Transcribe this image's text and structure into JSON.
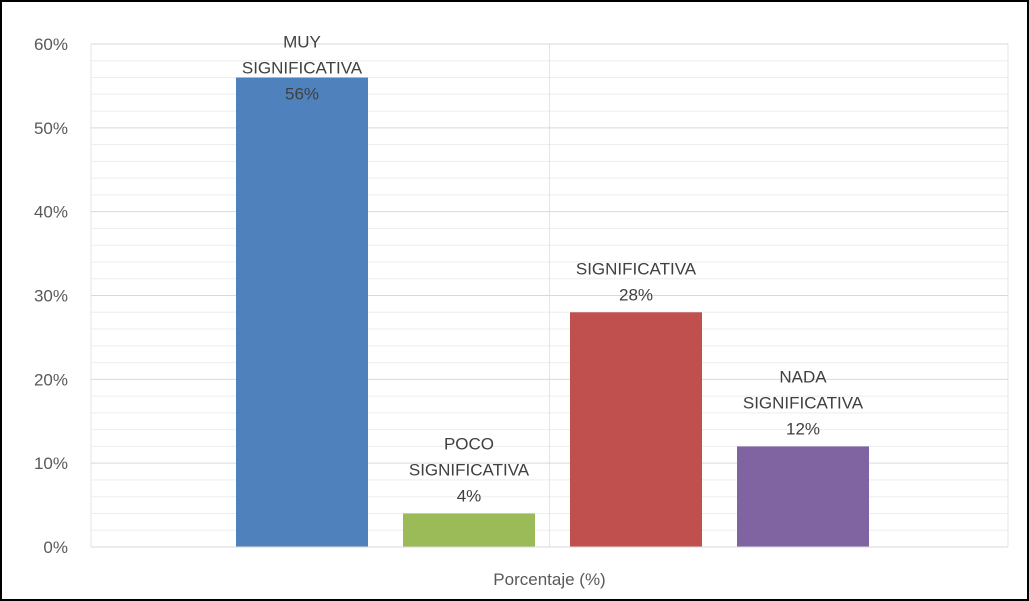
{
  "chart_data": {
    "type": "bar",
    "categories": [
      "MUY SIGNIFICATIVA",
      "POCO SIGNIFICATIVA",
      "SIGNIFICATIVA",
      "NADA SIGNIFICATIVA"
    ],
    "label_lines": [
      [
        "MUY",
        "SIGNIFICATIVA"
      ],
      [
        "POCO",
        "SIGNIFICATIVA"
      ],
      [
        "SIGNIFICATIVA"
      ],
      [
        "NADA",
        "SIGNIFICATIVA"
      ]
    ],
    "values": [
      56,
      4,
      28,
      12
    ],
    "value_labels": [
      "56%",
      "4%",
      "28%",
      "12%"
    ],
    "colors": [
      "#4F81BD",
      "#9BBB59",
      "#C0504D",
      "#8064A2"
    ],
    "xlabel": "Porcentaje (%)",
    "ylabel": "",
    "ylim": [
      0,
      60
    ],
    "yticks": [
      0,
      10,
      20,
      30,
      40,
      50,
      60
    ],
    "ytick_labels": [
      "0%",
      "10%",
      "20%",
      "30%",
      "40%",
      "50%",
      "60%"
    ],
    "minor_step": 2,
    "grid": true,
    "legend": "none"
  }
}
